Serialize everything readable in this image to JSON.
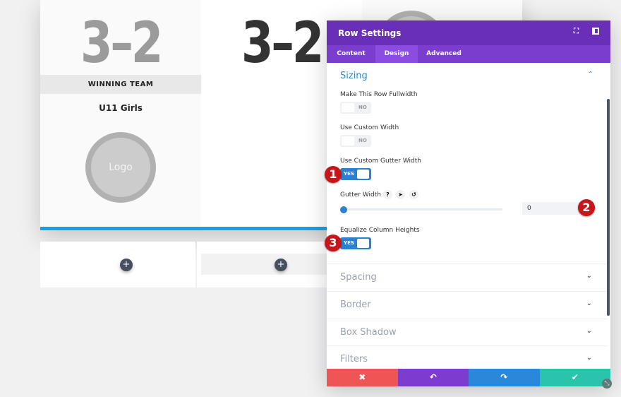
{
  "canvas": {
    "col1": {
      "score": "3–2",
      "band": "WINNING TEAM",
      "team": "U11 Girls",
      "logo": "Logo"
    },
    "col2": {
      "score": "3–2"
    },
    "add_icon": "+"
  },
  "modal": {
    "title": "Row Settings",
    "tabs": [
      {
        "label": "Content"
      },
      {
        "label": "Design",
        "active": true
      },
      {
        "label": "Advanced"
      }
    ],
    "sizing": {
      "title": "Sizing",
      "fullwidth": {
        "label": "Make This Row Fullwidth",
        "value": "NO"
      },
      "custom_width": {
        "label": "Use Custom Width",
        "value": "NO"
      },
      "custom_gutter": {
        "label": "Use Custom Gutter Width",
        "value": "YES"
      },
      "gutter_width": {
        "label": "Gutter Width",
        "value": "0",
        "slider_fraction": 0
      },
      "equalize": {
        "label": "Equalize Column Heights",
        "value": "YES"
      }
    },
    "sections": [
      "Spacing",
      "Border",
      "Box Shadow",
      "Filters"
    ],
    "footer": {
      "cancel": "✖",
      "undo": "↶",
      "redo": "↷",
      "save": "✔"
    },
    "colors": {
      "header": "#6a2fb7",
      "tabs": "#7b3dce",
      "cancel": "#ef5555",
      "undo": "#7e3bd0",
      "redo": "#2b87da",
      "save": "#29c4a9"
    }
  },
  "badges": [
    "1",
    "2",
    "3"
  ]
}
